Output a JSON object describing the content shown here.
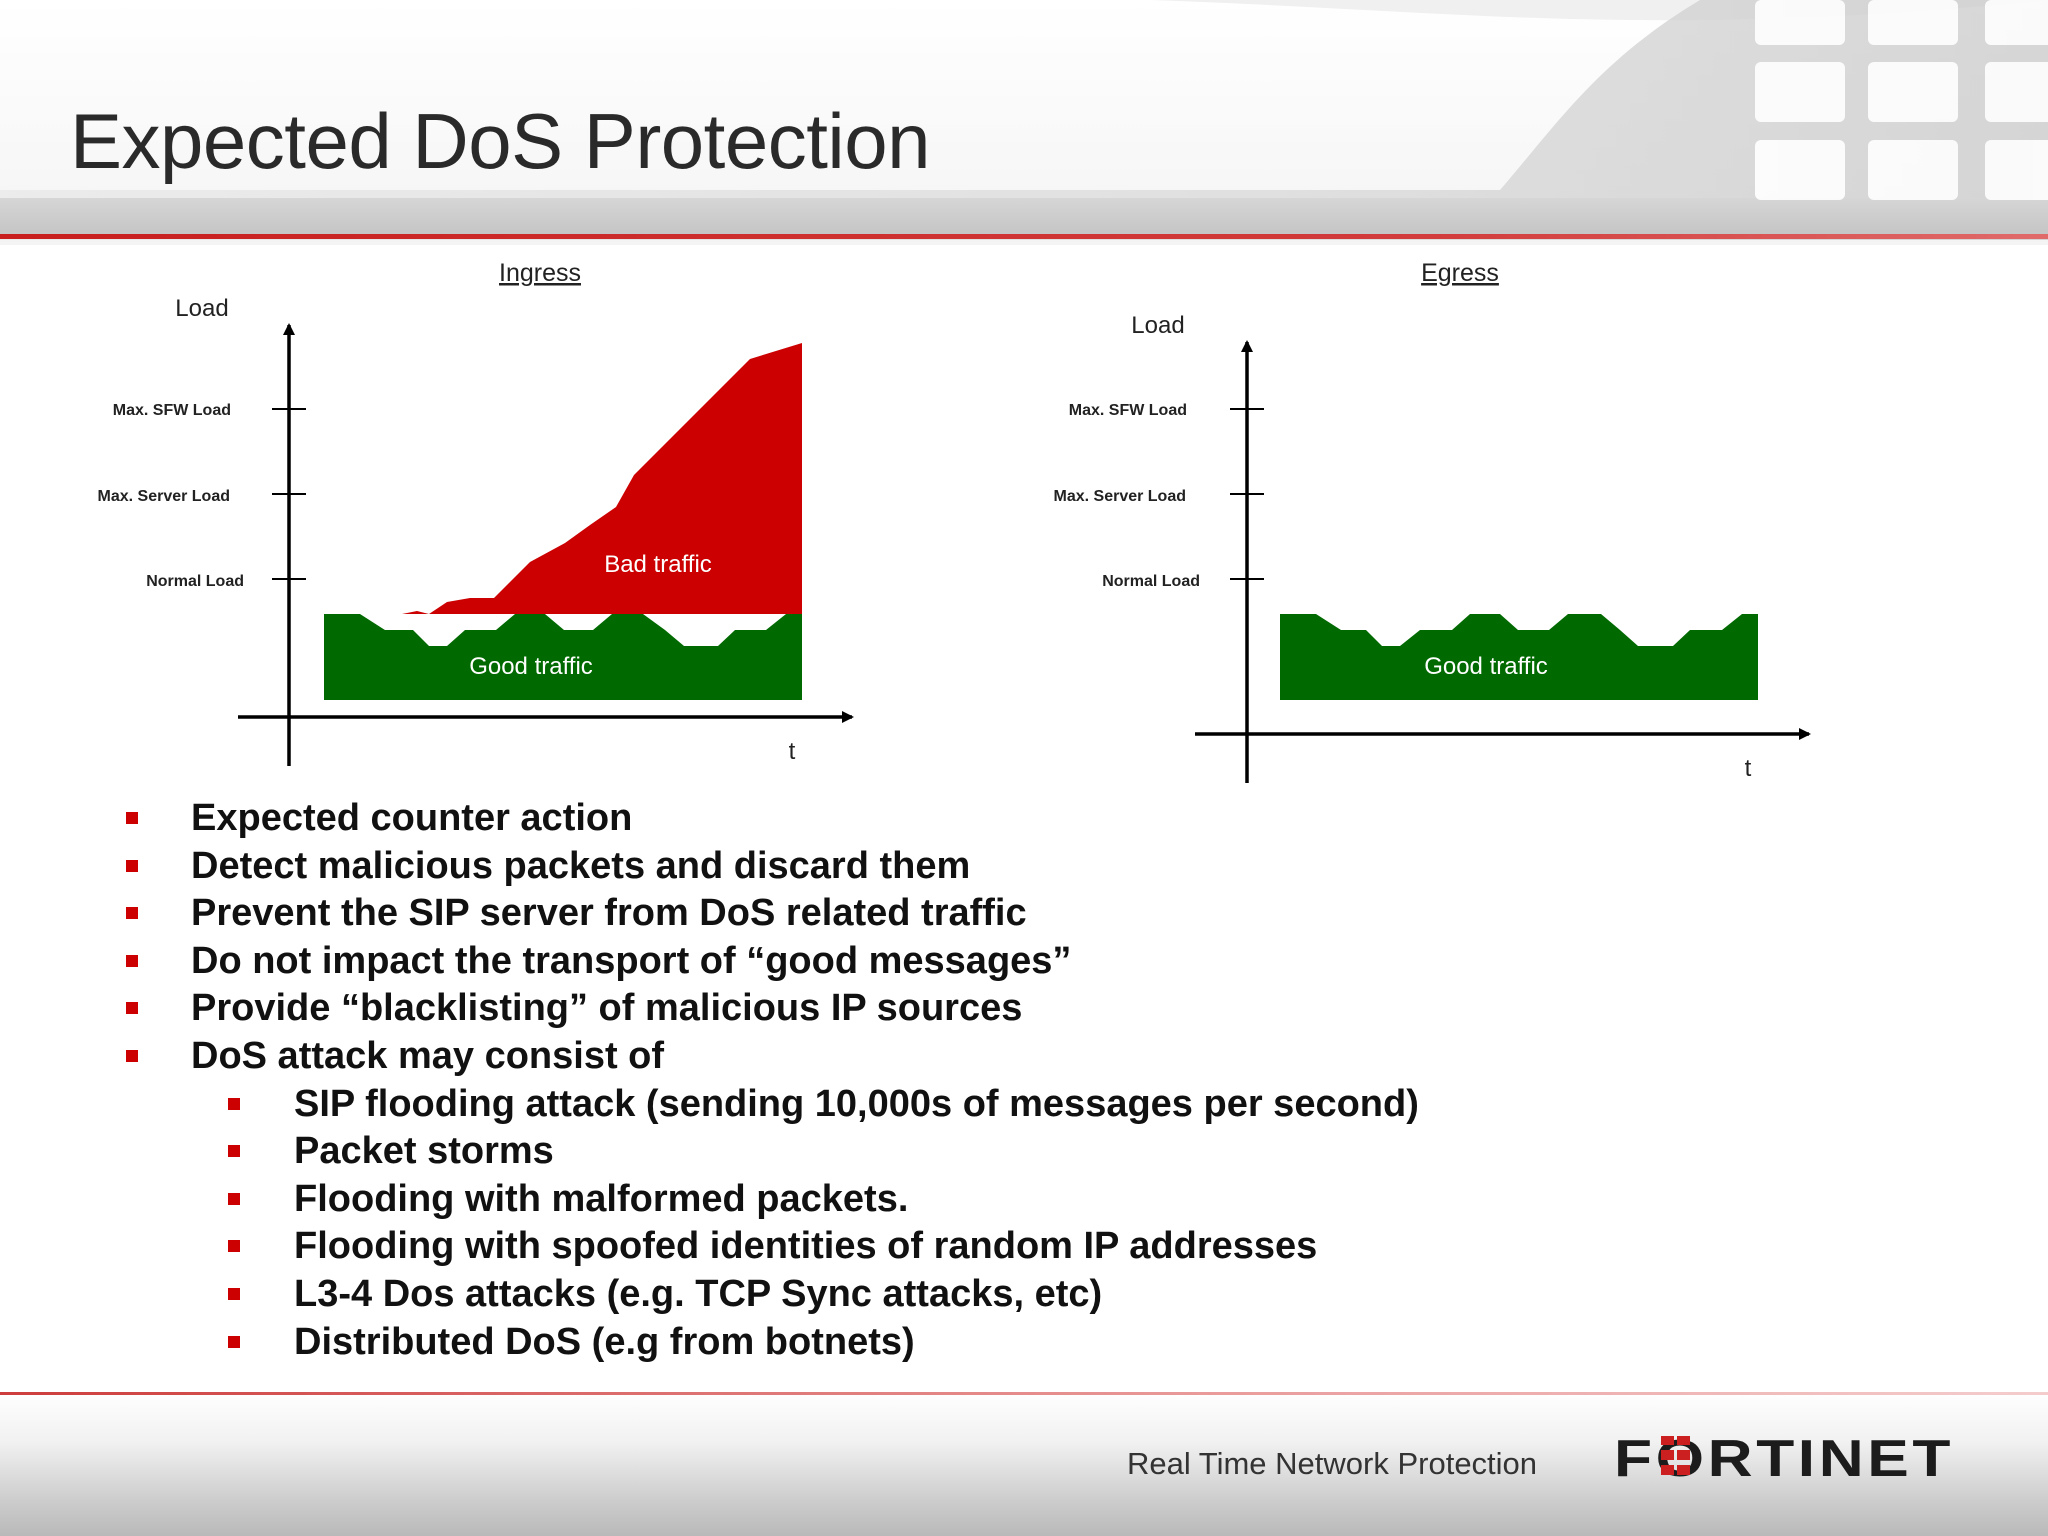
{
  "slide": {
    "title": "Expected DoS Protection"
  },
  "diagrams": [
    {
      "title": "Ingress",
      "y_axis_label": "Load",
      "x_axis_label": "t",
      "levels": [
        "Max. SFW Load",
        "Max. Server Load",
        "Normal Load"
      ],
      "regions": [
        "Bad traffic",
        "Good traffic"
      ]
    },
    {
      "title": "Egress",
      "y_axis_label": "Load",
      "x_axis_label": "t",
      "levels": [
        "Max. SFW Load",
        "Max. Server Load",
        "Normal Load"
      ],
      "regions": [
        "Good traffic"
      ]
    }
  ],
  "colors": {
    "bad_traffic": "#cc0000",
    "good_traffic": "#006a00",
    "accent": "#cc0000"
  },
  "bullets": [
    {
      "level": 1,
      "text": "Expected counter action"
    },
    {
      "level": 1,
      "text": "Detect malicious packets and discard them"
    },
    {
      "level": 1,
      "text": "Prevent the SIP server from DoS related traffic"
    },
    {
      "level": 1,
      "text": "Do not impact the transport of “good messages”"
    },
    {
      "level": 1,
      "text": "Provide “blacklisting” of malicious IP sources"
    },
    {
      "level": 1,
      "text": "DoS attack may consist of"
    },
    {
      "level": 2,
      "text": "SIP flooding attack (sending 10,000s of messages per second)"
    },
    {
      "level": 2,
      "text": "Packet storms"
    },
    {
      "level": 2,
      "text": "Flooding with malformed packets."
    },
    {
      "level": 2,
      "text": "Flooding with spoofed identities of random IP addresses"
    },
    {
      "level": 2,
      "text": "L3-4 Dos attacks (e.g. TCP Sync attacks, etc)"
    },
    {
      "level": 2,
      "text": "Distributed DoS (e.g from botnets)"
    }
  ],
  "footer": {
    "tagline": "Real Time Network Protection",
    "logo_text": "FORTINET"
  }
}
